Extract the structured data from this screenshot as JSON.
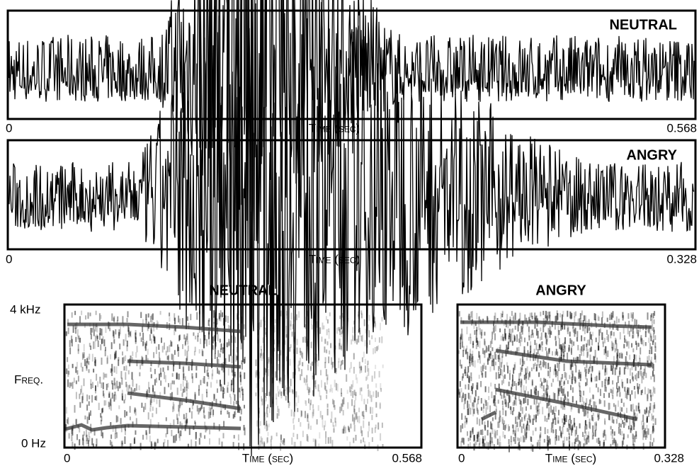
{
  "waveforms": [
    {
      "label": "NEUTRAL",
      "time_start": "0",
      "time_axis": "Time (sec)",
      "time_end": "0.568"
    },
    {
      "label": "ANGRY",
      "time_start": "0",
      "time_axis": "Time (sec)",
      "time_end": "0.328"
    }
  ],
  "spectrograms": [
    {
      "title": "NEUTRAL",
      "y_top": "4 kHz",
      "y_axis": "Freq.",
      "y_bottom": "0 Hz",
      "time_start": "0",
      "time_axis": "Time (sec)",
      "time_end": "0.568"
    },
    {
      "title": "ANGRY",
      "time_start": "0",
      "time_axis": "Time (sec)",
      "time_end": "0.328"
    }
  ]
}
